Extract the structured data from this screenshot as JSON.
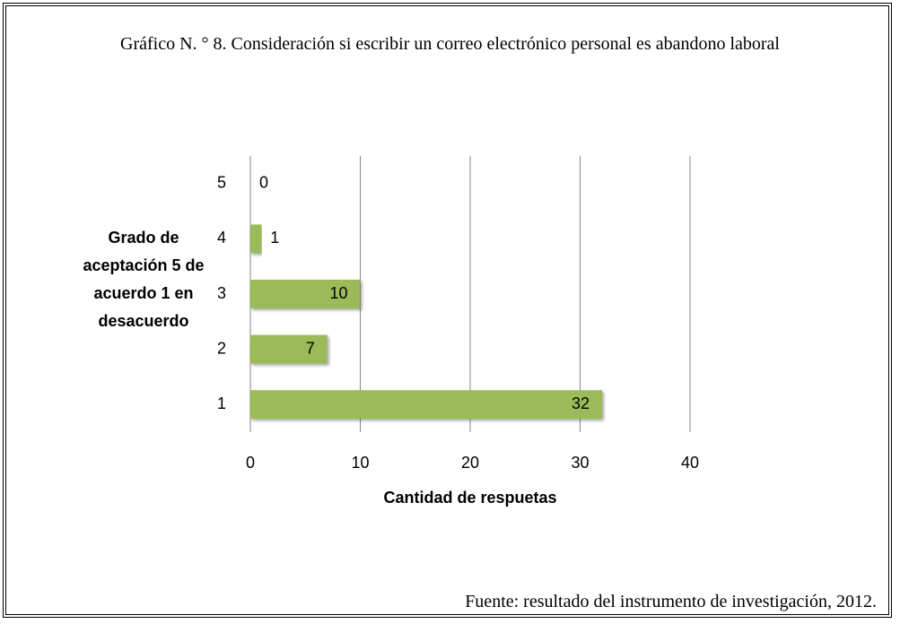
{
  "chart_data": {
    "type": "barh",
    "title": "Gráfico N. ° 8. Consideración si escribir un correo electrónico personal es abandono laboral",
    "xlabel": "Cantidad de respuetas",
    "ylabel": "Grado de aceptación 5 de acuerdo 1 en desacuerdo",
    "note": "Fuente: resultado del instrumento de investigación, 2012.",
    "categories": [
      "1",
      "2",
      "3",
      "4",
      "5"
    ],
    "values": [
      32,
      7,
      10,
      1,
      0
    ],
    "color": "#9bbb59",
    "xlim": [
      0,
      40
    ],
    "xticks": [
      0,
      10,
      20,
      30,
      40
    ],
    "grid": true
  }
}
